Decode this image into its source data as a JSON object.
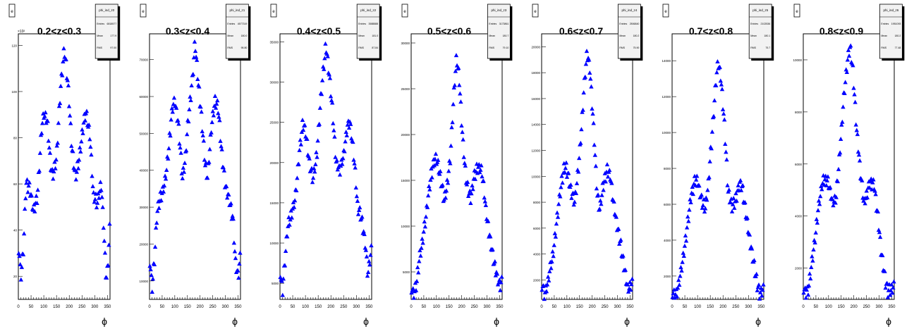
{
  "figure": {
    "canvas_button": "e",
    "exponent_label": "×10²",
    "xlabel": "ϕ"
  },
  "chart_data": [
    {
      "type": "scatter",
      "title": "0.2<z<0.3",
      "xlabel": "ϕ",
      "xlim": [
        0,
        360
      ],
      "ylim": [
        10,
        125
      ],
      "xticks": [
        "0",
        "50",
        "100",
        "150",
        "200",
        "250",
        "300",
        "350"
      ],
      "yticks": [
        {
          "v": 20,
          "t": "20"
        },
        {
          "v": 40,
          "t": "40"
        },
        {
          "v": 60,
          "t": "60"
        },
        {
          "v": 80,
          "t": "80"
        },
        {
          "v": 100,
          "t": "100"
        },
        {
          "v": 120,
          "t": "120"
        }
      ],
      "stats": {
        "name": "phi_ind_z0",
        "rows": [
          [
            "Entries",
            "6818577"
          ],
          [
            "Mean",
            "177.9"
          ],
          [
            "RMS",
            "97.00"
          ]
        ]
      },
      "marker_color": "#0000ff",
      "profile": [
        [
          0,
          35
        ],
        [
          10,
          20
        ],
        [
          20,
          32
        ],
        [
          30,
          60
        ],
        [
          45,
          58
        ],
        [
          60,
          48
        ],
        [
          75,
          55
        ],
        [
          90,
          82
        ],
        [
          100,
          91
        ],
        [
          115,
          86
        ],
        [
          125,
          70
        ],
        [
          135,
          63
        ],
        [
          150,
          72
        ],
        [
          165,
          100
        ],
        [
          180,
          119
        ],
        [
          195,
          104
        ],
        [
          210,
          76
        ],
        [
          225,
          63
        ],
        [
          240,
          72
        ],
        [
          255,
          86
        ],
        [
          265,
          91
        ],
        [
          280,
          82
        ],
        [
          295,
          55
        ],
        [
          310,
          52
        ],
        [
          325,
          60
        ],
        [
          335,
          42
        ],
        [
          345,
          18
        ],
        [
          352,
          25
        ],
        [
          358,
          40
        ]
      ]
    },
    {
      "type": "scatter",
      "title": "0.3<z<0.4",
      "xlabel": "ϕ",
      "xlim": [
        0,
        360
      ],
      "ylim": [
        5000,
        77000
      ],
      "xticks": [
        "0",
        "50",
        "100",
        "150",
        "200",
        "250",
        "300",
        "350"
      ],
      "yticks": [
        {
          "v": 10000,
          "t": "10000"
        },
        {
          "v": 20000,
          "t": "20000"
        },
        {
          "v": 30000,
          "t": "30000"
        },
        {
          "v": 40000,
          "t": "40000"
        },
        {
          "v": 50000,
          "t": "50000"
        },
        {
          "v": 60000,
          "t": "60000"
        },
        {
          "v": 70000,
          "t": "70000"
        }
      ],
      "stats": {
        "name": "phi_ind_z1",
        "rows": [
          [
            "Entries",
            "4577319"
          ],
          [
            "Mean",
            "180.0"
          ],
          [
            "RMS",
            "95.80"
          ]
        ]
      },
      "marker_color": "#0000ff",
      "profile": [
        [
          0,
          17000
        ],
        [
          10,
          8000
        ],
        [
          20,
          16000
        ],
        [
          30,
          29000
        ],
        [
          45,
          33000
        ],
        [
          60,
          36000
        ],
        [
          75,
          45000
        ],
        [
          90,
          57000
        ],
        [
          100,
          59000
        ],
        [
          115,
          52000
        ],
        [
          130,
          38000
        ],
        [
          140,
          42000
        ],
        [
          155,
          55000
        ],
        [
          170,
          65000
        ],
        [
          180,
          75000
        ],
        [
          190,
          66000
        ],
        [
          205,
          55000
        ],
        [
          220,
          42000
        ],
        [
          230,
          38000
        ],
        [
          245,
          52000
        ],
        [
          260,
          59000
        ],
        [
          272,
          57000
        ],
        [
          285,
          45000
        ],
        [
          300,
          36000
        ],
        [
          315,
          32000
        ],
        [
          330,
          27000
        ],
        [
          340,
          15000
        ],
        [
          350,
          11000
        ],
        [
          358,
          16000
        ]
      ]
    },
    {
      "type": "scatter",
      "title": "0.4<z<0.5",
      "xlabel": "ϕ",
      "xlim": [
        0,
        360
      ],
      "ylim": [
        3000,
        36000
      ],
      "xticks": [
        "0",
        "50",
        "100",
        "150",
        "200",
        "250",
        "300",
        "350"
      ],
      "yticks": [
        {
          "v": 5000,
          "t": "5000"
        },
        {
          "v": 10000,
          "t": "10000"
        },
        {
          "v": 15000,
          "t": "15000"
        },
        {
          "v": 20000,
          "t": "20000"
        },
        {
          "v": 25000,
          "t": "25000"
        },
        {
          "v": 30000,
          "t": "30000"
        },
        {
          "v": 35000,
          "t": "35000"
        }
      ],
      "stats": {
        "name": "phi_ind_z2",
        "rows": [
          [
            "Entries",
            "3588888"
          ],
          [
            "Mean",
            "181.0"
          ],
          [
            "RMS",
            "87.84"
          ]
        ]
      },
      "marker_color": "#0000ff",
      "profile": [
        [
          0,
          7000
        ],
        [
          10,
          4000
        ],
        [
          20,
          8000
        ],
        [
          30,
          12000
        ],
        [
          45,
          13500
        ],
        [
          60,
          15500
        ],
        [
          75,
          21000
        ],
        [
          90,
          25000
        ],
        [
          100,
          24000
        ],
        [
          115,
          20000
        ],
        [
          130,
          18000
        ],
        [
          145,
          21000
        ],
        [
          160,
          28000
        ],
        [
          172,
          32000
        ],
        [
          180,
          34500
        ],
        [
          190,
          32000
        ],
        [
          205,
          27000
        ],
        [
          220,
          20000
        ],
        [
          235,
          19000
        ],
        [
          250,
          21000
        ],
        [
          265,
          24500
        ],
        [
          275,
          25000
        ],
        [
          290,
          21000
        ],
        [
          305,
          14500
        ],
        [
          320,
          13000
        ],
        [
          335,
          10000
        ],
        [
          345,
          6000
        ],
        [
          352,
          8000
        ],
        [
          358,
          9000
        ]
      ]
    },
    {
      "type": "scatter",
      "title": "0.5<z<0.6",
      "xlabel": "ϕ",
      "xlim": [
        0,
        360
      ],
      "ylim": [
        2000,
        31000
      ],
      "xticks": [
        "0",
        "50",
        "100",
        "150",
        "200",
        "250",
        "300",
        "350"
      ],
      "yticks": [
        {
          "v": 5000,
          "t": "5000"
        },
        {
          "v": 10000,
          "t": "10000"
        },
        {
          "v": 15000,
          "t": "15000"
        },
        {
          "v": 20000,
          "t": "20000"
        },
        {
          "v": 25000,
          "t": "25000"
        },
        {
          "v": 30000,
          "t": "30000"
        }
      ],
      "stats": {
        "name": "phi_ind_z3",
        "rows": [
          [
            "Entries",
            "3173861"
          ],
          [
            "Mean",
            "180.7"
          ],
          [
            "RMS",
            "79.10"
          ]
        ]
      },
      "marker_color": "#0000ff",
      "profile": [
        [
          0,
          3500
        ],
        [
          10,
          2500
        ],
        [
          20,
          3500
        ],
        [
          30,
          6000
        ],
        [
          45,
          8500
        ],
        [
          60,
          11500
        ],
        [
          75,
          15000
        ],
        [
          90,
          17000
        ],
        [
          100,
          17500
        ],
        [
          115,
          15500
        ],
        [
          130,
          13000
        ],
        [
          140,
          14000
        ],
        [
          155,
          17500
        ],
        [
          170,
          25000
        ],
        [
          180,
          28500
        ],
        [
          190,
          26000
        ],
        [
          205,
          19000
        ],
        [
          220,
          14500
        ],
        [
          235,
          13000
        ],
        [
          250,
          15500
        ],
        [
          265,
          16500
        ],
        [
          280,
          16000
        ],
        [
          295,
          12000
        ],
        [
          310,
          9000
        ],
        [
          325,
          6500
        ],
        [
          340,
          4500
        ],
        [
          350,
          3500
        ],
        [
          358,
          4000
        ]
      ]
    },
    {
      "type": "scatter",
      "title": "0.6<z<0.7",
      "xlabel": "ϕ",
      "xlim": [
        0,
        360
      ],
      "ylim": [
        500,
        21000
      ],
      "xticks": [
        "0",
        "50",
        "100",
        "150",
        "200",
        "250",
        "300",
        "350"
      ],
      "yticks": [
        {
          "v": 2000,
          "t": "2000"
        },
        {
          "v": 4000,
          "t": "4000"
        },
        {
          "v": 6000,
          "t": "6000"
        },
        {
          "v": 8000,
          "t": "8000"
        },
        {
          "v": 10000,
          "t": "10000"
        },
        {
          "v": 12000,
          "t": "12000"
        },
        {
          "v": 14000,
          "t": "14000"
        },
        {
          "v": 16000,
          "t": "16000"
        },
        {
          "v": 18000,
          "t": "18000"
        },
        {
          "v": 20000,
          "t": "20000"
        }
      ],
      "stats": {
        "name": "phi_ind_z4",
        "rows": [
          [
            "Entries",
            "2506840"
          ],
          [
            "Mean",
            "180.2"
          ],
          [
            "RMS",
            "75.90"
          ]
        ]
      },
      "marker_color": "#0000ff",
      "profile": [
        [
          0,
          1800
        ],
        [
          10,
          1000
        ],
        [
          20,
          1400
        ],
        [
          30,
          2500
        ],
        [
          45,
          4000
        ],
        [
          60,
          6500
        ],
        [
          75,
          9000
        ],
        [
          90,
          10800
        ],
        [
          100,
          10500
        ],
        [
          115,
          9000
        ],
        [
          130,
          8000
        ],
        [
          140,
          9500
        ],
        [
          155,
          13000
        ],
        [
          170,
          17500
        ],
        [
          180,
          19500
        ],
        [
          190,
          18500
        ],
        [
          205,
          14000
        ],
        [
          220,
          8500
        ],
        [
          230,
          7500
        ],
        [
          245,
          9500
        ],
        [
          260,
          10500
        ],
        [
          272,
          10000
        ],
        [
          285,
          8000
        ],
        [
          300,
          6000
        ],
        [
          315,
          4500
        ],
        [
          330,
          2500
        ],
        [
          340,
          1300
        ],
        [
          350,
          1500
        ],
        [
          358,
          1800
        ]
      ]
    },
    {
      "type": "scatter",
      "title": "0.7<z<0.8",
      "xlabel": "ϕ",
      "xlim": [
        0,
        360
      ],
      "ylim": [
        700,
        15500
      ],
      "xticks": [
        "0",
        "50",
        "100",
        "150",
        "200",
        "250",
        "300",
        "350"
      ],
      "yticks": [
        {
          "v": 2000,
          "t": "2000"
        },
        {
          "v": 4000,
          "t": "4000"
        },
        {
          "v": 6000,
          "t": "6000"
        },
        {
          "v": 8000,
          "t": "8000"
        },
        {
          "v": 10000,
          "t": "10000"
        },
        {
          "v": 12000,
          "t": "12000"
        },
        {
          "v": 14000,
          "t": "14000"
        }
      ],
      "stats": {
        "name": "phi_ind_z5",
        "rows": [
          [
            "Entries",
            "2102536"
          ],
          [
            "Mean",
            "180.1"
          ],
          [
            "RMS",
            "75.7"
          ]
        ]
      },
      "marker_color": "#0000ff",
      "profile": [
        [
          0,
          1200
        ],
        [
          10,
          1000
        ],
        [
          20,
          1100
        ],
        [
          30,
          1800
        ],
        [
          45,
          3200
        ],
        [
          60,
          4800
        ],
        [
          75,
          6500
        ],
        [
          90,
          7300
        ],
        [
          100,
          7300
        ],
        [
          115,
          6200
        ],
        [
          130,
          5800
        ],
        [
          140,
          6800
        ],
        [
          155,
          9500
        ],
        [
          170,
          12500
        ],
        [
          180,
          14000
        ],
        [
          190,
          13300
        ],
        [
          205,
          10500
        ],
        [
          220,
          6800
        ],
        [
          235,
          5800
        ],
        [
          250,
          6300
        ],
        [
          265,
          7200
        ],
        [
          275,
          7000
        ],
        [
          290,
          5500
        ],
        [
          305,
          4000
        ],
        [
          320,
          2800
        ],
        [
          335,
          1500
        ],
        [
          345,
          1000
        ],
        [
          352,
          1200
        ],
        [
          358,
          1300
        ]
      ]
    },
    {
      "type": "scatter",
      "title": "0.8<z<0.9",
      "xlabel": "ϕ",
      "xlim": [
        0,
        360
      ],
      "ylim": [
        800,
        11000
      ],
      "xticks": [
        "0",
        "50",
        "100",
        "150",
        "200",
        "250",
        "300",
        "350"
      ],
      "yticks": [
        {
          "v": 2000,
          "t": "2000"
        },
        {
          "v": 4000,
          "t": "4000"
        },
        {
          "v": 6000,
          "t": "6000"
        },
        {
          "v": 8000,
          "t": "8000"
        },
        {
          "v": 10000,
          "t": "10000"
        }
      ],
      "stats": {
        "name": "phi_ind_z6",
        "rows": [
          [
            "Entries",
            "1951093"
          ],
          [
            "Mean",
            "180.2"
          ],
          [
            "RMS",
            "77.48"
          ]
        ]
      },
      "marker_color": "#0000ff",
      "profile": [
        [
          0,
          1200
        ],
        [
          10,
          1100
        ],
        [
          20,
          1200
        ],
        [
          30,
          1900
        ],
        [
          45,
          3000
        ],
        [
          60,
          4300
        ],
        [
          75,
          5300
        ],
        [
          90,
          5400
        ],
        [
          100,
          5300
        ],
        [
          115,
          4500
        ],
        [
          130,
          4700
        ],
        [
          145,
          6500
        ],
        [
          160,
          8500
        ],
        [
          175,
          10000
        ],
        [
          185,
          10500
        ],
        [
          195,
          9800
        ],
        [
          210,
          7500
        ],
        [
          225,
          5800
        ],
        [
          240,
          4500
        ],
        [
          255,
          5000
        ],
        [
          265,
          5300
        ],
        [
          280,
          5200
        ],
        [
          295,
          4000
        ],
        [
          310,
          2500
        ],
        [
          325,
          1500
        ],
        [
          335,
          1100
        ],
        [
          345,
          1200
        ],
        [
          358,
          1300
        ]
      ]
    }
  ]
}
